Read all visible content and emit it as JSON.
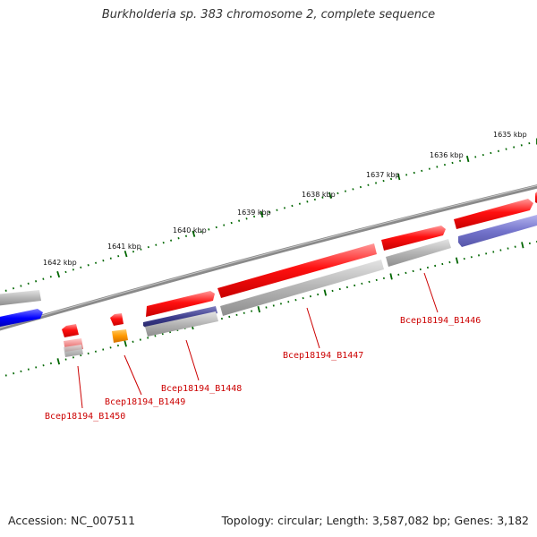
{
  "title": "Burkholderia sp. 383 chromosome 2, complete sequence",
  "footer": {
    "accession": "Accession: NC_007511",
    "summary": "Topology: circular; Length: 3,587,082 bp; Genes: 3,182"
  },
  "ticks": [
    "1635 kbp",
    "1636 kbp",
    "1637 kbp",
    "1638 kbp",
    "1639 kbp",
    "1640 kbp",
    "1641 kbp",
    "1642 kbp"
  ],
  "genes": [
    "Bcep18194_B1446",
    "Bcep18194_B1447",
    "Bcep18194_B1448",
    "Bcep18194_B1449",
    "Bcep18194_B1450"
  ],
  "colors": {
    "backbone": "#777777",
    "forward_gene": "#ff0000",
    "reverse_gene_blue": "#0000ff",
    "reverse_gene_navy": "#3c3c8c",
    "reverse_gene_purple": "#7777cc",
    "orange_gene": "#ff9900",
    "pink_gene": "#ee8888",
    "gray_feature": "#b8b8b8",
    "tick": "#006600",
    "label": "#cc0000"
  }
}
